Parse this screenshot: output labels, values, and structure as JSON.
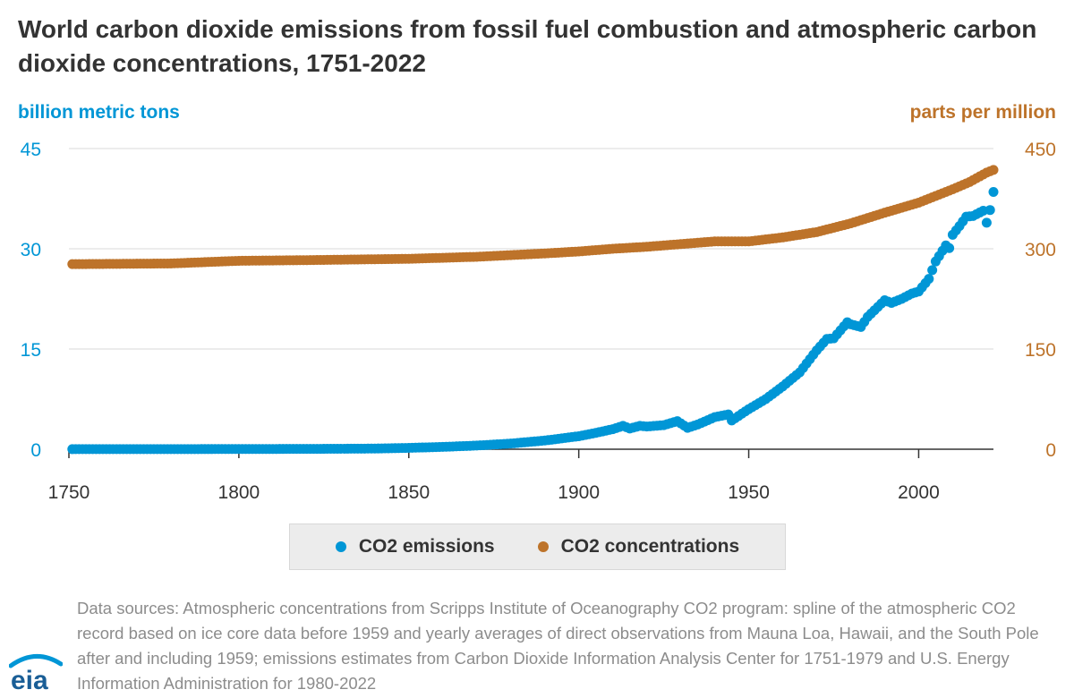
{
  "title": "World carbon dioxide emissions from fossil fuel combustion and atmospheric carbon dioxide concentrations, 1751-2022",
  "logo_text": "eia",
  "colors": {
    "emissions": "#0096d6",
    "concentrations": "#bd732a",
    "grid": "#d9d9d9",
    "text": "#333333"
  },
  "chart_data": {
    "type": "scatter",
    "title": "World carbon dioxide emissions from fossil fuel combustion and atmospheric carbon dioxide concentrations, 1751-2022",
    "y_left_label": "billion metric tons",
    "y_right_label": "parts per million",
    "xlim": [
      1750,
      2022
    ],
    "x_ticks": [
      "1750",
      "1800",
      "1850",
      "1900",
      "1950",
      "2000"
    ],
    "y_left_ticks": [
      "0",
      "15",
      "30",
      "45"
    ],
    "y_right_ticks": [
      "0",
      "150",
      "300",
      "450"
    ],
    "y_left_lim": [
      0,
      45
    ],
    "y_right_lim": [
      0,
      450
    ],
    "grid": true,
    "legend_position": "bottom",
    "series": [
      {
        "name": "CO2 emissions",
        "axis": "left",
        "points": [
          [
            1751,
            0.01
          ],
          [
            1800,
            0.03
          ],
          [
            1820,
            0.05
          ],
          [
            1830,
            0.07
          ],
          [
            1840,
            0.1
          ],
          [
            1850,
            0.2
          ],
          [
            1860,
            0.35
          ],
          [
            1870,
            0.55
          ],
          [
            1880,
            0.85
          ],
          [
            1890,
            1.3
          ],
          [
            1900,
            1.95
          ],
          [
            1905,
            2.45
          ],
          [
            1910,
            3.0
          ],
          [
            1913,
            3.5
          ],
          [
            1915,
            3.1
          ],
          [
            1918,
            3.5
          ],
          [
            1920,
            3.4
          ],
          [
            1925,
            3.6
          ],
          [
            1929,
            4.2
          ],
          [
            1932,
            3.2
          ],
          [
            1935,
            3.7
          ],
          [
            1940,
            4.8
          ],
          [
            1944,
            5.2
          ],
          [
            1945,
            4.3
          ],
          [
            1950,
            6.0
          ],
          [
            1955,
            7.5
          ],
          [
            1960,
            9.4
          ],
          [
            1965,
            11.5
          ],
          [
            1970,
            14.8
          ],
          [
            1973,
            16.5
          ],
          [
            1975,
            16.6
          ],
          [
            1979,
            19.0
          ],
          [
            1980,
            18.7
          ],
          [
            1983,
            18.3
          ],
          [
            1985,
            19.8
          ],
          [
            1990,
            22.3
          ],
          [
            1992,
            21.9
          ],
          [
            1995,
            22.5
          ],
          [
            1998,
            23.3
          ],
          [
            2000,
            23.6
          ],
          [
            2003,
            25.5
          ],
          [
            2005,
            28.1
          ],
          [
            2008,
            30.5
          ],
          [
            2009,
            30.1
          ],
          [
            2010,
            32.1
          ],
          [
            2012,
            33.4
          ],
          [
            2014,
            34.8
          ],
          [
            2016,
            34.9
          ],
          [
            2019,
            35.7
          ],
          [
            2020,
            33.9
          ],
          [
            2021,
            35.8
          ],
          [
            2022,
            38.5
          ]
        ]
      },
      {
        "name": "CO2 concentrations",
        "axis": "right",
        "points": [
          [
            1751,
            277
          ],
          [
            1780,
            278
          ],
          [
            1800,
            282
          ],
          [
            1820,
            283
          ],
          [
            1850,
            285
          ],
          [
            1870,
            288
          ],
          [
            1890,
            293
          ],
          [
            1900,
            296
          ],
          [
            1910,
            300
          ],
          [
            1920,
            303
          ],
          [
            1930,
            307
          ],
          [
            1940,
            311
          ],
          [
            1950,
            311
          ],
          [
            1960,
            317
          ],
          [
            1970,
            325
          ],
          [
            1980,
            338
          ],
          [
            1990,
            354
          ],
          [
            2000,
            369
          ],
          [
            2010,
            389
          ],
          [
            2015,
            400
          ],
          [
            2020,
            414
          ],
          [
            2022,
            418
          ]
        ]
      }
    ]
  },
  "footnote": "Data sources: Atmospheric concentrations from Scripps Institute of Oceanography CO2 program: spline of the atmospheric CO2 record based on ice core data before 1959 and yearly averages of direct observations from Mauna Loa, Hawaii, and the South Pole after and including 1959; emissions estimates from Carbon Dioxide Information Analysis Center for 1751-1979 and U.S. Energy Information Administration for 1980-2022"
}
